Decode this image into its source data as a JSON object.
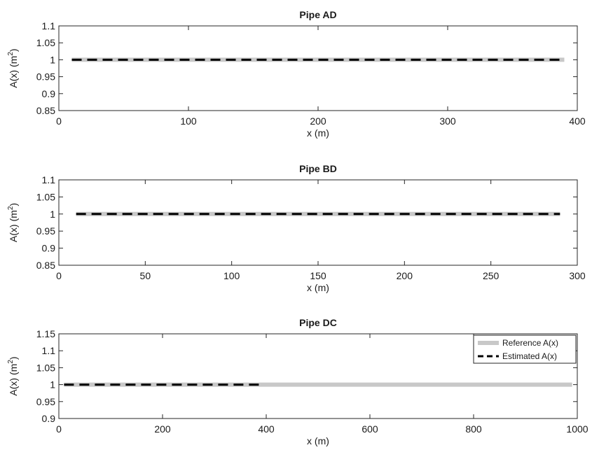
{
  "chart_data": [
    {
      "type": "line",
      "title": "Pipe AD",
      "xlabel": "x (m)",
      "ylabel_base": "A(x) (m",
      "ylabel_sup": "2",
      "ylabel_close": ")",
      "xlim": [
        0,
        400
      ],
      "ylim": [
        0.85,
        1.1
      ],
      "xticks": [
        "0",
        "100",
        "200",
        "300",
        "400"
      ],
      "yticks": [
        "0.85",
        "0.9",
        "0.95",
        "1",
        "1.05",
        "1.1"
      ],
      "grid": false,
      "legend": null,
      "series": [
        {
          "x": [
            10,
            390
          ],
          "y": [
            1,
            1
          ],
          "color": "#c8c8c8",
          "style": "solid"
        },
        {
          "x": [
            10,
            390
          ],
          "y": [
            1,
            1
          ],
          "color": "#000000",
          "style": "dashed"
        }
      ]
    },
    {
      "type": "line",
      "title": "Pipe BD",
      "xlabel": "x (m)",
      "ylabel_base": "A(x) (m",
      "ylabel_sup": "2",
      "ylabel_close": ")",
      "xlim": [
        0,
        300
      ],
      "ylim": [
        0.85,
        1.1
      ],
      "xticks": [
        "0",
        "50",
        "100",
        "150",
        "200",
        "250",
        "300"
      ],
      "yticks": [
        "0.85",
        "0.9",
        "0.95",
        "1",
        "1.05",
        "1.1"
      ],
      "grid": false,
      "legend": null,
      "series": [
        {
          "x": [
            10,
            290
          ],
          "y": [
            1,
            1
          ],
          "color": "#c8c8c8",
          "style": "solid"
        },
        {
          "x": [
            10,
            290
          ],
          "y": [
            1,
            1
          ],
          "color": "#000000",
          "style": "dashed"
        }
      ]
    },
    {
      "type": "line",
      "title": "Pipe DC",
      "xlabel": "x (m)",
      "ylabel_base": "A(x) (m",
      "ylabel_sup": "2",
      "ylabel_close": ")",
      "xlim": [
        0,
        1000
      ],
      "ylim": [
        0.9,
        1.15
      ],
      "xticks": [
        "0",
        "200",
        "400",
        "600",
        "800",
        "1000"
      ],
      "yticks": [
        "0.9",
        "0.95",
        "1",
        "1.05",
        "1.1",
        "1.15"
      ],
      "grid": false,
      "legend": "top-right",
      "series": [
        {
          "name": "Reference A(x)",
          "x": [
            10,
            990
          ],
          "y": [
            1,
            1
          ],
          "color": "#c8c8c8",
          "style": "solid"
        },
        {
          "name": "Estimated A(x)",
          "x": [
            10,
            390
          ],
          "y": [
            1,
            1
          ],
          "color": "#000000",
          "style": "dashed"
        }
      ]
    }
  ]
}
